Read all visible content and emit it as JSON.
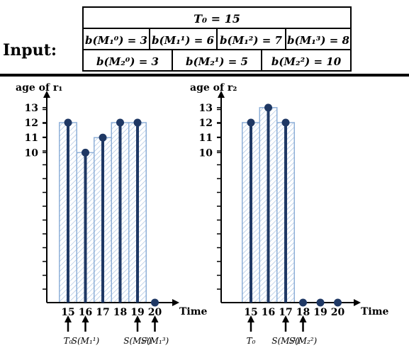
{
  "input": {
    "label": "Input:",
    "t0_row": "T₀ = 15",
    "row1": [
      "b(M₁⁰) = 3",
      "b(M₁¹) = 6",
      "b(M₁²) = 7",
      "b(M₁³) = 8"
    ],
    "row2": [
      "b(M₂⁰) = 3",
      "b(M₂¹) = 5",
      "b(M₂²) = 10"
    ]
  },
  "colors": {
    "bar_stroke": "#8fb0d8",
    "bar_hatch": "#9ab8dd",
    "stem": "#1f3864",
    "dot": "#1f3864"
  },
  "chart_data": [
    {
      "type": "bar",
      "ylabel": "age of r₁",
      "xlabel": "Time",
      "x": [
        15,
        16,
        17,
        18,
        19,
        20
      ],
      "bars": [
        12,
        10,
        11,
        12,
        12,
        0
      ],
      "points": [
        12,
        10,
        11,
        12,
        12,
        0
      ],
      "yticks": [
        10,
        11,
        12,
        13
      ],
      "ylim": [
        0,
        13.5
      ],
      "events": [
        {
          "x": 15,
          "label": "T₀"
        },
        {
          "x": 16,
          "label": "S(M₁¹)"
        },
        {
          "x": 19,
          "label": "S(M₁²)"
        },
        {
          "x": 20,
          "label": "S(M₁³)"
        }
      ]
    },
    {
      "type": "bar",
      "ylabel": "age of r₂",
      "xlabel": "Time",
      "x": [
        15,
        16,
        17,
        18,
        19,
        20
      ],
      "bars": [
        12,
        13,
        12,
        0,
        0,
        0
      ],
      "points": [
        12,
        13,
        12,
        0,
        0,
        0
      ],
      "yticks": [
        10,
        11,
        12,
        13
      ],
      "ylim": [
        0,
        13.5
      ],
      "events": [
        {
          "x": 15,
          "label": "T₀"
        },
        {
          "x": 17,
          "label": "S(M₂¹)"
        },
        {
          "x": 18,
          "label": "S(M₂²)"
        }
      ]
    }
  ]
}
